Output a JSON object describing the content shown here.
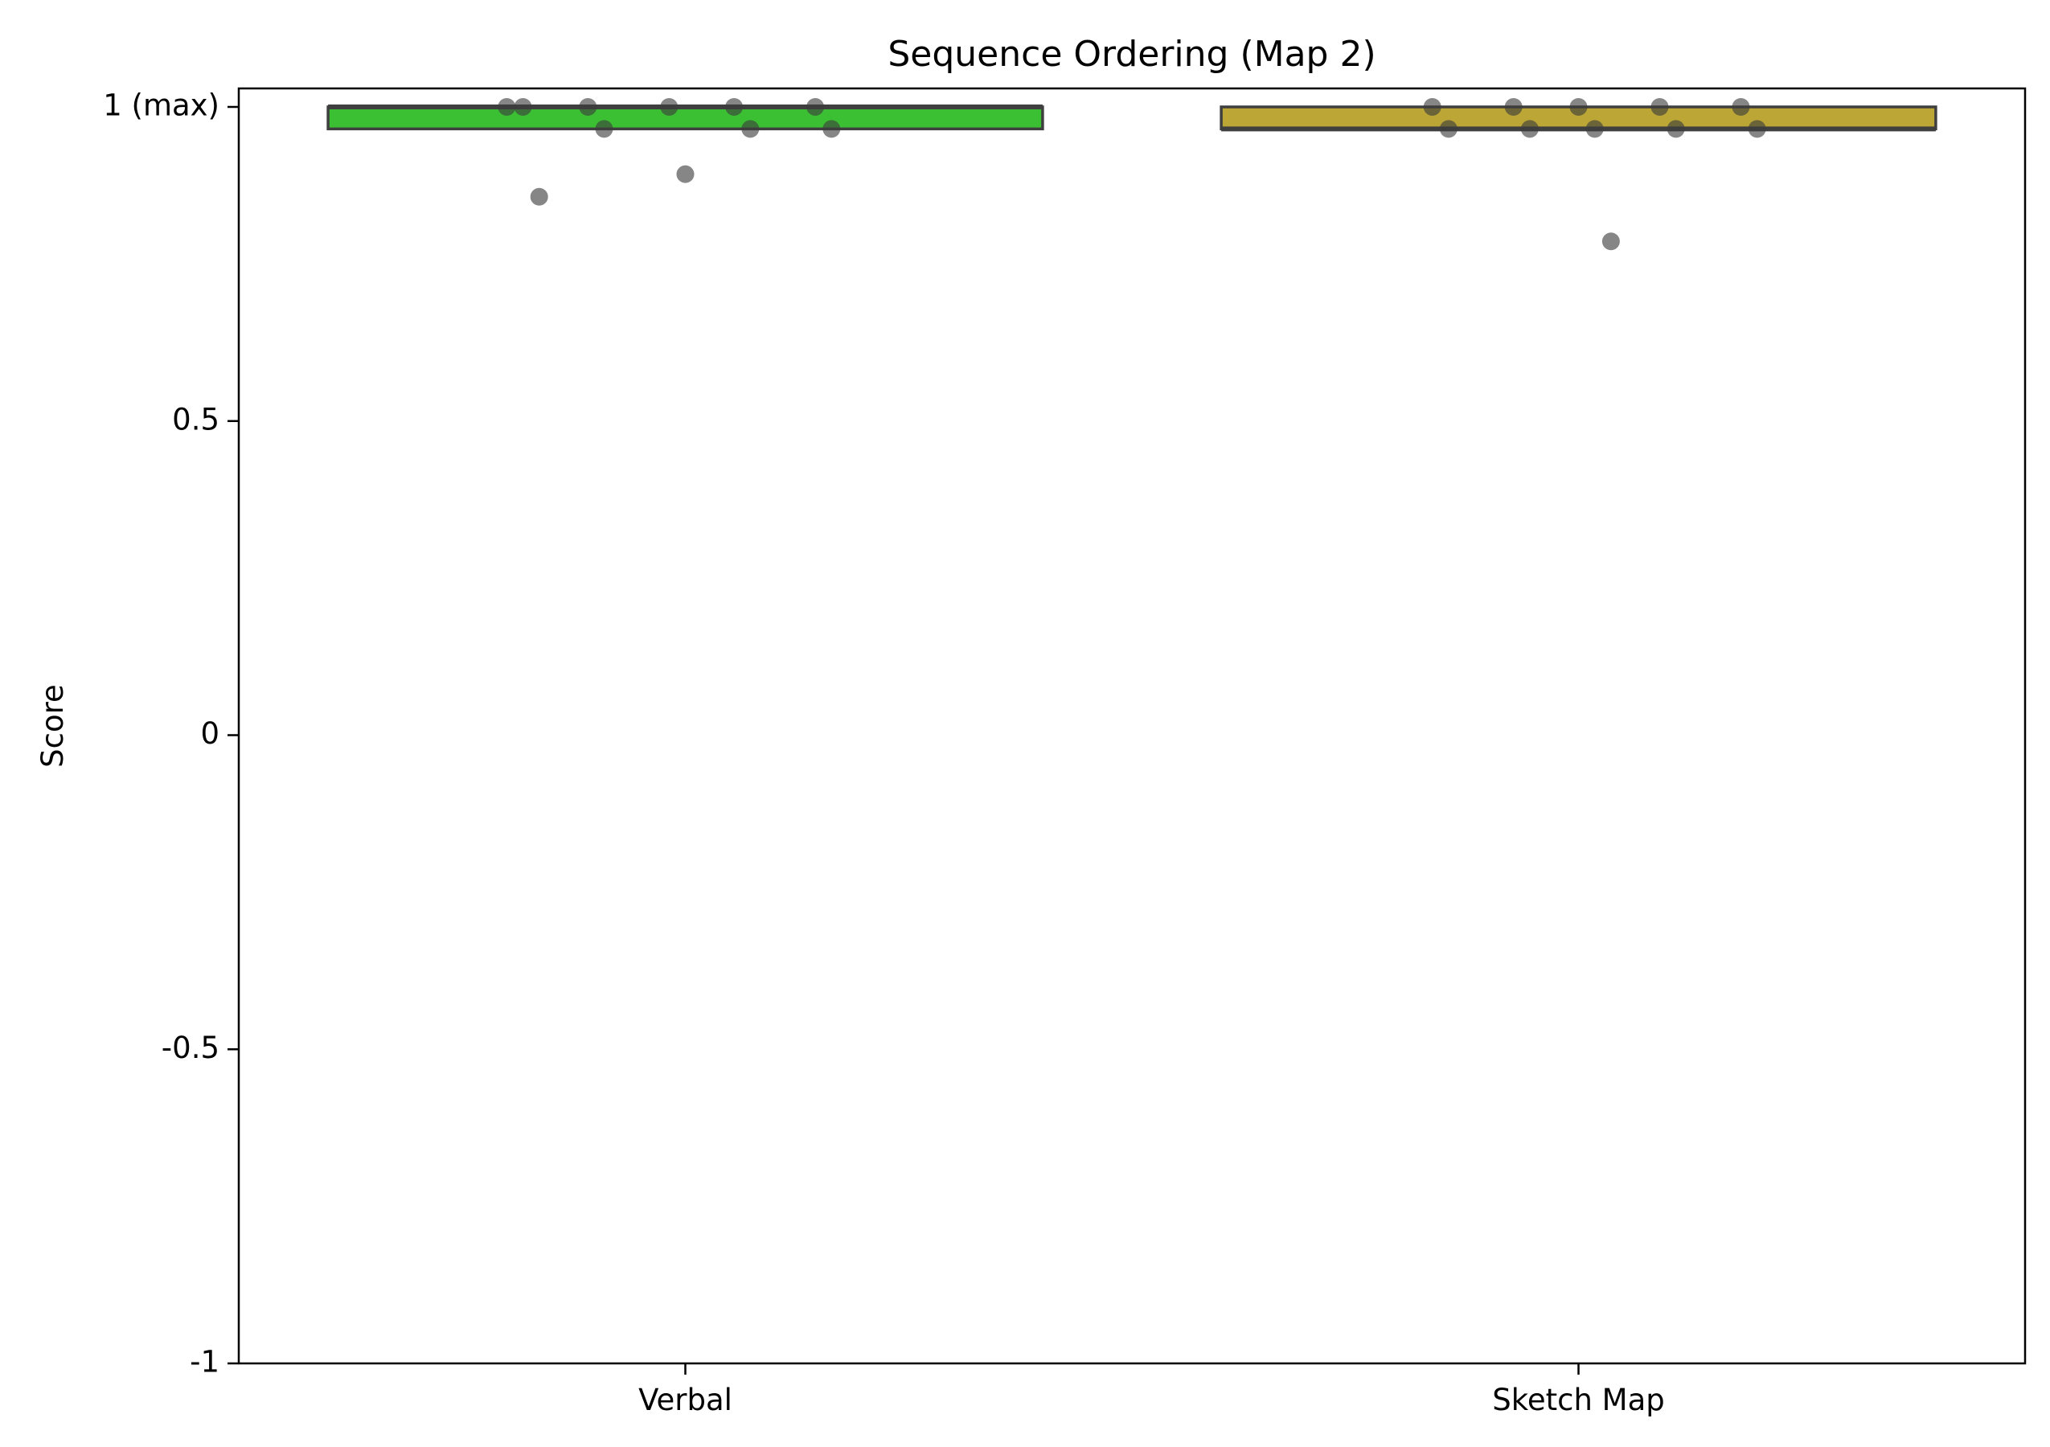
{
  "chart_data": {
    "type": "box",
    "title": "Sequence Ordering (Map 2)",
    "xlabel": "",
    "ylabel": "Score",
    "ylim": [
      -1,
      1.03
    ],
    "yticks": [
      {
        "value": 1,
        "label": "1 (max)"
      },
      {
        "value": 0.5,
        "label": "0.5"
      },
      {
        "value": 0,
        "label": "0"
      },
      {
        "value": -0.5,
        "label": "-0.5"
      },
      {
        "value": -1,
        "label": "-1"
      }
    ],
    "categories": [
      "Verbal",
      "Sketch Map"
    ],
    "boxes": [
      {
        "category": "Verbal",
        "color": "#3cc033",
        "q1": 0.965,
        "median": 1.0,
        "q3": 1.0,
        "whisker_low": 0.965,
        "whisker_high": 1.0
      },
      {
        "category": "Sketch Map",
        "color": "#bca636",
        "q1": 0.965,
        "median": 0.965,
        "q3": 1.0,
        "whisker_low": 0.965,
        "whisker_high": 1.0
      }
    ],
    "points": [
      {
        "category": "Verbal",
        "values": [
          1.0,
          1.0,
          1.0,
          1.0,
          1.0,
          1.0,
          0.965,
          0.965,
          0.965,
          0.893,
          0.857
        ]
      },
      {
        "category": "Sketch Map",
        "values": [
          1.0,
          1.0,
          1.0,
          1.0,
          1.0,
          0.965,
          0.965,
          0.965,
          0.965,
          0.965,
          0.786
        ]
      }
    ],
    "grid": false,
    "legend": "none"
  }
}
